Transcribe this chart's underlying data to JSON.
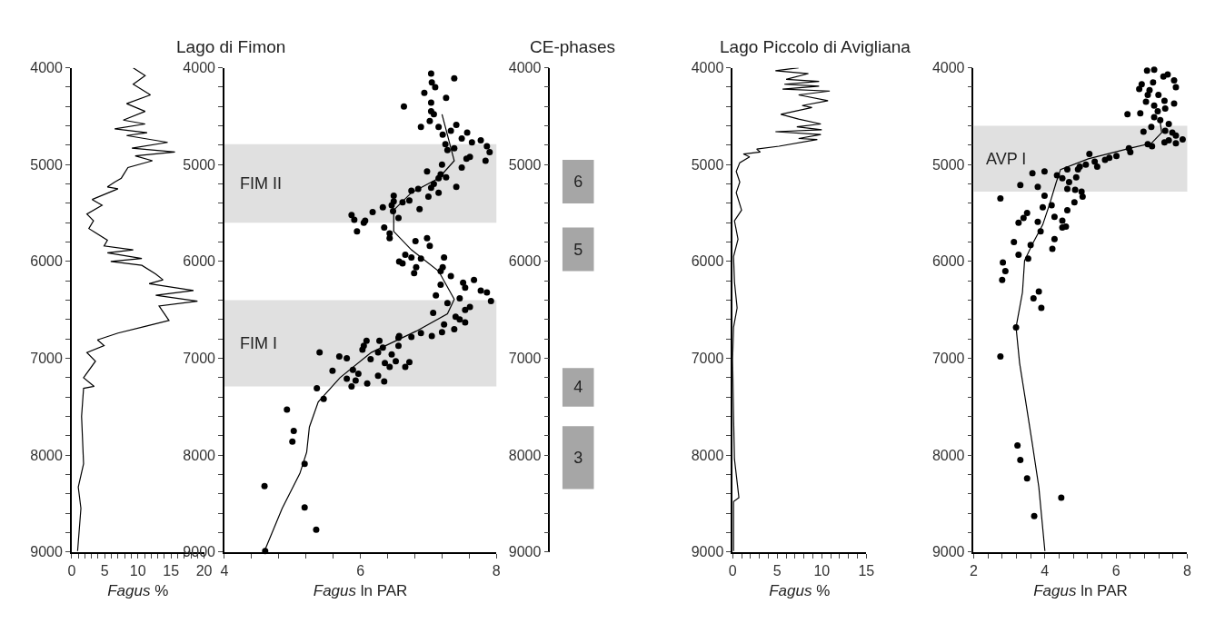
{
  "chart_data": [
    {
      "type": "line",
      "title": "Lago di Fimon",
      "xlabel": "Fagus %",
      "xlim": [
        0,
        20
      ],
      "ylim": [
        9000,
        4000
      ],
      "xticks": [
        0,
        {
          "value": 1,
          "label": null
        },
        {
          "value": 2,
          "label": null
        },
        {
          "value": 3,
          "label": null
        },
        {
          "value": 4,
          "label": null
        },
        5,
        {
          "value": 6,
          "label": null
        },
        {
          "value": 7,
          "label": null
        },
        {
          "value": 8,
          "label": null
        },
        {
          "value": 9,
          "label": null
        },
        10,
        {
          "value": 11,
          "label": null
        },
        {
          "value": 12,
          "label": null
        },
        {
          "value": 13,
          "label": null
        },
        {
          "value": 14,
          "label": null
        },
        15,
        {
          "value": 16,
          "label": null
        },
        {
          "value": 17,
          "label": null
        },
        {
          "value": 18,
          "label": null
        },
        {
          "value": 19,
          "label": null
        },
        20
      ],
      "yticks": [
        4000,
        {
          "value": 4200,
          "label": null
        },
        {
          "value": 4400,
          "label": null
        },
        {
          "value": 4600,
          "label": null
        },
        {
          "value": 4800,
          "label": null
        },
        5000,
        {
          "value": 5200,
          "label": null
        },
        {
          "value": 5400,
          "label": null
        },
        {
          "value": 5600,
          "label": null
        },
        {
          "value": 5800,
          "label": null
        },
        6000,
        {
          "value": 6200,
          "label": null
        },
        {
          "value": 6400,
          "label": null
        },
        {
          "value": 6600,
          "label": null
        },
        {
          "value": 6800,
          "label": null
        },
        7000,
        {
          "value": 7200,
          "label": null
        },
        {
          "value": 7400,
          "label": null
        },
        {
          "value": 7600,
          "label": null
        },
        {
          "value": 7800,
          "label": null
        },
        8000,
        {
          "value": 8200,
          "label": null
        },
        {
          "value": 8400,
          "label": null
        },
        {
          "value": 8600,
          "label": null
        },
        {
          "value": 8800,
          "label": null
        },
        9000
      ],
      "series": [
        {
          "color": "#000000",
          "x": [
            9.3,
            11.1,
            9.3,
            11.9,
            8.3,
            11.1,
            7.8,
            11.1,
            6.5,
            11.4,
            8.3,
            14.5,
            9.1,
            15.6,
            9.6,
            12.2,
            8.5,
            7.5,
            6.5,
            5.4,
            7.0,
            3.1,
            4.6,
            2.3,
            3.3,
            2.6,
            5.4,
            4.9,
            9.3,
            5.4,
            10.6,
            5.9,
            10.6,
            12.7,
            13.8,
            11.7,
            18.4,
            12.7,
            19.0,
            13.2,
            14.7,
            11.1,
            7.0,
            3.9,
            4.9,
            2.3,
            3.6,
            1.8,
            3.4,
            1.8,
            1.5,
            1.8,
            1.0,
            1.4,
            0.9
          ],
          "values": [
            4000,
            4080,
            4170,
            4280,
            4370,
            4450,
            4540,
            4580,
            4630,
            4670,
            4700,
            4770,
            4830,
            4870,
            4910,
            4960,
            5030,
            5140,
            5180,
            5230,
            5250,
            5360,
            5420,
            5510,
            5580,
            5660,
            5780,
            5840,
            5880,
            5910,
            5970,
            6000,
            6040,
            6130,
            6190,
            6230,
            6300,
            6350,
            6410,
            6460,
            6610,
            6670,
            6740,
            6810,
            6870,
            6940,
            7030,
            7200,
            7290,
            7310,
            7600,
            8090,
            8330,
            8550,
            8990
          ]
        }
      ]
    },
    {
      "type": "scatter",
      "xlabel": "Fagus ln PAR",
      "xlim": [
        4,
        8
      ],
      "ylim": [
        9000,
        4000
      ],
      "marker": "circle",
      "xticks": [
        4,
        {
          "value": 4.4,
          "label": null
        },
        {
          "value": 4.8,
          "label": null
        },
        {
          "value": 5.2,
          "label": null
        },
        {
          "value": 5.6,
          "label": null
        },
        6,
        {
          "value": 6.4,
          "label": null
        },
        {
          "value": 6.8,
          "label": null
        },
        {
          "value": 7.2,
          "label": null
        },
        {
          "value": 7.6,
          "label": null
        },
        8
      ],
      "yticks": [
        4000,
        {
          "value": 4200,
          "label": null
        },
        {
          "value": 4400,
          "label": null
        },
        {
          "value": 4600,
          "label": null
        },
        {
          "value": 4800,
          "label": null
        },
        5000,
        {
          "value": 5200,
          "label": null
        },
        {
          "value": 5400,
          "label": null
        },
        {
          "value": 5600,
          "label": null
        },
        {
          "value": 5800,
          "label": null
        },
        6000,
        {
          "value": 6200,
          "label": null
        },
        {
          "value": 6400,
          "label": null
        },
        {
          "value": 6600,
          "label": null
        },
        {
          "value": 6800,
          "label": null
        },
        7000,
        {
          "value": 7200,
          "label": null
        },
        {
          "value": 7400,
          "label": null
        },
        {
          "value": 7600,
          "label": null
        },
        {
          "value": 7800,
          "label": null
        },
        8000,
        {
          "value": 8200,
          "label": null
        },
        {
          "value": 8400,
          "label": null
        },
        {
          "value": 8600,
          "label": null
        },
        {
          "value": 8800,
          "label": null
        },
        9000
      ],
      "bands": [
        {
          "axis": "y",
          "from": 4790,
          "to": 5600,
          "label": "FIM II",
          "color": "#e0e0e0"
        },
        {
          "axis": "y",
          "from": 6400,
          "to": 7290,
          "label": "FIM I",
          "color": "#e0e0e0"
        }
      ],
      "series": [
        {
          "type": "scatter",
          "color": "#000000",
          "x": [
            7.04,
            7.38,
            7.05,
            7.1,
            6.94,
            7.26,
            6.64,
            7.04,
            7.04,
            7.08,
            7.02,
            6.89,
            7.41,
            7.15,
            7.33,
            7.21,
            7.57,
            7.49,
            7.64,
            7.77,
            7.86,
            7.25,
            7.28,
            7.38,
            7.9,
            7.61,
            7.56,
            7.84,
            7.2,
            7.49,
            6.98,
            7.18,
            7.26,
            7.15,
            7.08,
            7.41,
            7.04,
            6.85,
            6.75,
            7.15,
            7.0,
            6.72,
            6.49,
            6.49,
            6.62,
            6.46,
            6.33,
            6.18,
            5.87,
            6.87,
            6.48,
            6.56,
            5.91,
            6.05,
            6.07,
            5.95,
            6.35,
            6.43,
            6.43,
            6.81,
            6.98,
            7.02,
            6.66,
            6.57,
            6.62,
            6.75,
            6.89,
            6.82,
            6.79,
            7.23,
            7.21,
            7.18,
            7.33,
            7.18,
            7.67,
            7.51,
            7.54,
            7.77,
            7.86,
            7.92,
            7.46,
            7.11,
            7.28,
            7.61,
            7.54,
            7.07,
            7.4,
            7.46,
            7.54,
            7.23,
            7.38,
            7.2,
            6.89,
            6.75,
            6.57,
            6.56,
            7.05,
            6.28,
            6.09,
            6.05,
            6.33,
            6.56,
            6.03,
            6.26,
            6.46,
            5.4,
            5.69,
            5.8,
            6.15,
            6.36,
            6.52,
            6.72,
            6.43,
            6.66,
            5.59,
            5.89,
            5.97,
            6.26,
            5.8,
            5.93,
            6.35,
            5.87,
            6.1,
            5.36,
            5.46,
            4.92,
            5.02,
            5.0,
            5.18,
            4.59,
            5.18,
            5.35,
            4.6
          ],
          "values": [
            4060,
            4110,
            4150,
            4200,
            4260,
            4310,
            4400,
            4360,
            4450,
            4480,
            4550,
            4610,
            4590,
            4610,
            4650,
            4690,
            4670,
            4730,
            4770,
            4750,
            4810,
            4790,
            4850,
            4830,
            4870,
            4920,
            4940,
            4960,
            5000,
            5030,
            5070,
            5100,
            5130,
            5140,
            5200,
            5230,
            5240,
            5250,
            5270,
            5290,
            5330,
            5370,
            5320,
            5380,
            5390,
            5420,
            5440,
            5490,
            5520,
            5460,
            5480,
            5550,
            5570,
            5600,
            5580,
            5690,
            5650,
            5710,
            5760,
            5790,
            5760,
            5840,
            5930,
            6000,
            6020,
            5960,
            5970,
            6060,
            6120,
            5960,
            6060,
            6100,
            6150,
            6240,
            6190,
            6220,
            6270,
            6300,
            6320,
            6410,
            6380,
            6350,
            6430,
            6470,
            6500,
            6530,
            6570,
            6600,
            6630,
            6650,
            6700,
            6730,
            6740,
            6780,
            6770,
            6790,
            6770,
            6820,
            6820,
            6870,
            6890,
            6870,
            6910,
            6940,
            6960,
            6940,
            6980,
            7000,
            7010,
            7050,
            7030,
            7040,
            7090,
            7090,
            7130,
            7120,
            7160,
            7180,
            7210,
            7230,
            7240,
            7290,
            7260,
            7310,
            7420,
            7530,
            7750,
            7860,
            8090,
            8320,
            8540,
            8770,
            8990
          ]
        },
        {
          "type": "line",
          "marker": "none",
          "color": "#000000",
          "x": [
            7.2,
            7.38,
            7.15,
            6.75,
            6.49,
            6.49,
            6.75,
            7.15,
            7.38,
            7.28,
            6.82,
            6.16,
            5.7,
            5.38,
            5.25,
            5.21,
            5.11,
            4.85,
            4.59
          ],
          "values": [
            4480,
            4960,
            5140,
            5290,
            5470,
            5690,
            5880,
            6100,
            6390,
            6540,
            6720,
            6940,
            7200,
            7450,
            7710,
            7970,
            8190,
            8550,
            8990
          ]
        }
      ]
    },
    {
      "type": "bar",
      "title": "CE-phases",
      "categories": [
        null
      ],
      "ylim": [
        9000,
        4000
      ],
      "yticks": [
        4000,
        {
          "value": 4200,
          "label": null
        },
        {
          "value": 4400,
          "label": null
        },
        {
          "value": 4600,
          "label": null
        },
        {
          "value": 4800,
          "label": null
        },
        5000,
        {
          "value": 5200,
          "label": null
        },
        {
          "value": 5400,
          "label": null
        },
        {
          "value": 5600,
          "label": null
        },
        {
          "value": 5800,
          "label": null
        },
        6000,
        {
          "value": 6200,
          "label": null
        },
        {
          "value": 6400,
          "label": null
        },
        {
          "value": 6600,
          "label": null
        },
        {
          "value": 6800,
          "label": null
        },
        7000,
        {
          "value": 7200,
          "label": null
        },
        {
          "value": 7400,
          "label": null
        },
        {
          "value": 7600,
          "label": null
        },
        {
          "value": 7800,
          "label": null
        },
        8000,
        {
          "value": 8200,
          "label": null
        },
        {
          "value": 8400,
          "label": null
        },
        {
          "value": 8600,
          "label": null
        },
        {
          "value": 8800,
          "label": null
        },
        9000
      ],
      "series": [
        {
          "name": "6",
          "color": "#a6a6a6",
          "base": [
            4950
          ],
          "values": [
            450
          ]
        },
        {
          "name": "5",
          "color": "#a6a6a6",
          "base": [
            5650
          ],
          "values": [
            450
          ]
        },
        {
          "name": "4",
          "color": "#a6a6a6",
          "base": [
            7100
          ],
          "values": [
            400
          ]
        },
        {
          "name": "3",
          "color": "#a6a6a6",
          "base": [
            7700
          ],
          "values": [
            650
          ]
        }
      ]
    },
    {
      "type": "line",
      "title": "Lago Piccolo di Avigliana",
      "xlabel": "Fagus %",
      "xlim": [
        0,
        15
      ],
      "ylim": [
        9000,
        4000
      ],
      "xticks": [
        0,
        {
          "value": 1,
          "label": null
        },
        {
          "value": 2,
          "label": null
        },
        {
          "value": 3,
          "label": null
        },
        {
          "value": 4,
          "label": null
        },
        5,
        {
          "value": 6,
          "label": null
        },
        {
          "value": 7,
          "label": null
        },
        {
          "value": 8,
          "label": null
        },
        {
          "value": 9,
          "label": null
        },
        10,
        {
          "value": 11,
          "label": null
        },
        {
          "value": 12,
          "label": null
        },
        {
          "value": 13,
          "label": null
        },
        {
          "value": 14,
          "label": null
        },
        15
      ],
      "yticks": [
        4000,
        {
          "value": 4200,
          "label": null
        },
        {
          "value": 4400,
          "label": null
        },
        {
          "value": 4600,
          "label": null
        },
        {
          "value": 4800,
          "label": null
        },
        5000,
        {
          "value": 5200,
          "label": null
        },
        {
          "value": 5400,
          "label": null
        },
        {
          "value": 5600,
          "label": null
        },
        {
          "value": 5800,
          "label": null
        },
        6000,
        {
          "value": 6200,
          "label": null
        },
        {
          "value": 6400,
          "label": null
        },
        {
          "value": 6600,
          "label": null
        },
        {
          "value": 6800,
          "label": null
        },
        7000,
        {
          "value": 7200,
          "label": null
        },
        {
          "value": 7400,
          "label": null
        },
        {
          "value": 7600,
          "label": null
        },
        {
          "value": 7800,
          "label": null
        },
        8000,
        {
          "value": 8200,
          "label": null
        },
        {
          "value": 8400,
          "label": null
        },
        {
          "value": 8600,
          "label": null
        },
        {
          "value": 8800,
          "label": null
        },
        9000
      ],
      "series": [
        {
          "color": "#000000",
          "x": [
            7.4,
            4.8,
            8.5,
            6.0,
            9.7,
            5.8,
            9.7,
            5.6,
            10.9,
            7.4,
            10.7,
            7.8,
            8.9,
            5.4,
            7.4,
            9.9,
            7.2,
            10.0,
            4.8,
            9.9,
            7.4,
            9.5,
            5.2,
            2.7,
            3.1,
            1.2,
            1.9,
            0.8,
            0.4,
            0.8,
            0.4,
            1.0,
            0.2,
            0.6,
            0.1,
            0.2,
            0.5,
            0.1,
            0.0,
            0.1,
            0.2,
            0.7,
            0.1,
            0.1
          ],
          "values": [
            4000,
            4030,
            4060,
            4120,
            4140,
            4170,
            4190,
            4220,
            4240,
            4280,
            4340,
            4390,
            4410,
            4480,
            4530,
            4580,
            4610,
            4640,
            4660,
            4690,
            4730,
            4740,
            4810,
            4840,
            4870,
            4890,
            4920,
            4980,
            5070,
            5180,
            5290,
            5470,
            5580,
            5770,
            5950,
            6210,
            6480,
            6680,
            7010,
            7600,
            8040,
            8440,
            8480,
            8990
          ]
        }
      ]
    },
    {
      "type": "scatter",
      "xlabel": "Fagus ln PAR",
      "xlim": [
        2,
        8
      ],
      "ylim": [
        9000,
        4000
      ],
      "marker": "circle",
      "xticks": [
        2,
        {
          "value": 2.4,
          "label": null
        },
        {
          "value": 2.8,
          "label": null
        },
        {
          "value": 3.2,
          "label": null
        },
        {
          "value": 3.6,
          "label": null
        },
        4,
        {
          "value": 4.4,
          "label": null
        },
        {
          "value": 4.8,
          "label": null
        },
        {
          "value": 5.2,
          "label": null
        },
        {
          "value": 5.6,
          "label": null
        },
        6,
        {
          "value": 6.4,
          "label": null
        },
        {
          "value": 6.8,
          "label": null
        },
        {
          "value": 7.2,
          "label": null
        },
        {
          "value": 7.6,
          "label": null
        },
        8
      ],
      "yticks": [
        4000,
        {
          "value": 4200,
          "label": null
        },
        {
          "value": 4400,
          "label": null
        },
        {
          "value": 4600,
          "label": null
        },
        {
          "value": 4800,
          "label": null
        },
        5000,
        {
          "value": 5200,
          "label": null
        },
        {
          "value": 5400,
          "label": null
        },
        {
          "value": 5600,
          "label": null
        },
        {
          "value": 5800,
          "label": null
        },
        6000,
        {
          "value": 6200,
          "label": null
        },
        {
          "value": 6400,
          "label": null
        },
        {
          "value": 6600,
          "label": null
        },
        {
          "value": 6800,
          "label": null
        },
        7000,
        {
          "value": 7200,
          "label": null
        },
        {
          "value": 7400,
          "label": null
        },
        {
          "value": 7600,
          "label": null
        },
        {
          "value": 7800,
          "label": null
        },
        8000,
        {
          "value": 8200,
          "label": null
        },
        {
          "value": 8400,
          "label": null
        },
        {
          "value": 8600,
          "label": null
        },
        {
          "value": 8800,
          "label": null
        },
        9000
      ],
      "bands": [
        {
          "axis": "y",
          "from": 4600,
          "to": 5280,
          "label": "AVP I",
          "color": "#e0e0e0"
        }
      ],
      "series": [
        {
          "type": "scatter",
          "color": "#000000",
          "x": [
            6.87,
            7.07,
            7.33,
            7.45,
            7.63,
            7.68,
            6.65,
            6.72,
            6.94,
            7.04,
            6.89,
            7.19,
            6.84,
            7.36,
            7.07,
            7.38,
            7.63,
            7.17,
            6.32,
            6.68,
            7.07,
            7.24,
            7.48,
            6.99,
            6.77,
            7.38,
            7.58,
            7.68,
            7.87,
            7.48,
            7.36,
            7.68,
            6.89,
            7.01,
            6.36,
            6.4,
            6.01,
            5.81,
            5.69,
            5.25,
            5.4,
            5.47,
            5.15,
            4.98,
            4.93,
            4.63,
            3.99,
            3.65,
            4.34,
            4.49,
            4.88,
            4.68,
            3.31,
            3.8,
            4.63,
            4.85,
            5.03,
            3.99,
            5.06,
            2.75,
            4.83,
            3.94,
            4.19,
            4.63,
            3.5,
            3.4,
            4.27,
            4.49,
            3.26,
            3.8,
            4.49,
            4.59,
            3.88,
            4.27,
            3.13,
            3.6,
            4.21,
            3.26,
            3.53,
            2.82,
            2.89,
            2.8,
            3.83,
            3.68,
            3.9,
            3.19,
            2.75,
            3.23,
            3.31,
            3.5,
            4.46,
            3.7
          ],
          "values": [
            4030,
            4020,
            4090,
            4070,
            4130,
            4200,
            4220,
            4170,
            4230,
            4150,
            4280,
            4280,
            4350,
            4340,
            4390,
            4420,
            4370,
            4450,
            4480,
            4470,
            4510,
            4540,
            4580,
            4610,
            4660,
            4650,
            4670,
            4700,
            4740,
            4750,
            4770,
            4780,
            4790,
            4810,
            4830,
            4870,
            4910,
            4930,
            4950,
            4890,
            4970,
            5020,
            5000,
            5020,
            5050,
            5050,
            5070,
            5090,
            5110,
            5140,
            5130,
            5180,
            5210,
            5230,
            5250,
            5260,
            5280,
            5320,
            5330,
            5350,
            5390,
            5440,
            5420,
            5470,
            5500,
            5550,
            5540,
            5580,
            5600,
            5590,
            5650,
            5640,
            5690,
            5770,
            5800,
            5830,
            5870,
            5930,
            5970,
            6010,
            6100,
            6190,
            6310,
            6380,
            6480,
            6680,
            6980,
            7900,
            8050,
            8240,
            8440,
            8630
          ]
        },
        {
          "type": "line",
          "marker": "none",
          "color": "#000000",
          "x": [
            7.24,
            7.28,
            6.99,
            6.4,
            5.22,
            4.44,
            4.32,
            4.14,
            3.94,
            3.65,
            3.43,
            3.37,
            3.19,
            3.29,
            3.45,
            3.65,
            3.83,
            4.0
          ],
          "values": [
            4560,
            4670,
            4780,
            4830,
            4940,
            5050,
            5180,
            5400,
            5620,
            5820,
            5990,
            6320,
            6680,
            7050,
            7420,
            7890,
            8330,
            8990
          ]
        }
      ]
    }
  ]
}
